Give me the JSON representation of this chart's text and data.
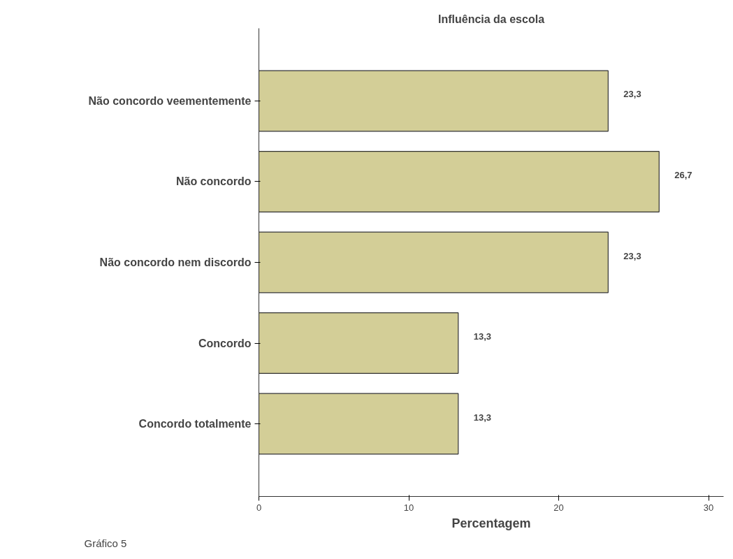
{
  "chart_data": {
    "type": "bar",
    "orientation": "horizontal",
    "title": "Influência da escola",
    "xlabel": "Percentagem",
    "categories": [
      "Não concordo veementemente",
      "Não concordo",
      "Não concordo nem discordo",
      "Concordo",
      "Concordo totalmente"
    ],
    "values": [
      23.3,
      26.7,
      23.3,
      13.3,
      13.3
    ],
    "color": "#d3ce97",
    "value_labels": [
      "23,3",
      "26,7",
      "23,3",
      "13,3",
      "13,3"
    ],
    "xlim": [
      0,
      31
    ],
    "xticks": [
      0,
      10,
      20,
      30
    ],
    "grid": false,
    "annotations": [
      "Gráfico 5"
    ]
  }
}
